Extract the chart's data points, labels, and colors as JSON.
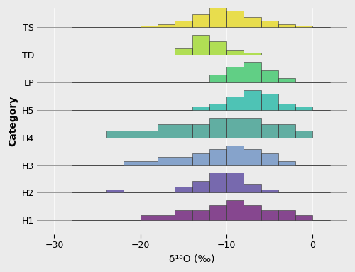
{
  "categories": [
    "H1",
    "H2",
    "H3",
    "H4",
    "H5",
    "LP",
    "TD",
    "TS"
  ],
  "colors": {
    "H1": "#7B3585",
    "H2": "#6B5BA8",
    "H3": "#7B9BC8",
    "H4": "#52A89A",
    "H5": "#3DBFAF",
    "LP": "#52CC7A",
    "TD": "#AADD44",
    "TS": "#E8DC3C"
  },
  "xlim": [
    -32,
    4
  ],
  "xlabel": "δ¹⁸O (‰)",
  "ylabel": "Category",
  "background_color": "#EBEBEB",
  "hist_data": {
    "TS": {
      "edges": [
        -28,
        -26,
        -24,
        -22,
        -20,
        -18,
        -16,
        -14,
        -12,
        -10,
        -8,
        -6,
        -4,
        -2,
        0,
        2
      ],
      "counts": [
        0,
        0,
        0,
        0,
        1,
        2,
        4,
        8,
        12,
        10,
        6,
        4,
        2,
        1,
        0
      ]
    },
    "TD": {
      "edges": [
        -28,
        -26,
        -24,
        -22,
        -20,
        -18,
        -16,
        -14,
        -12,
        -10,
        -8,
        -6,
        -4,
        -2,
        0,
        2
      ],
      "counts": [
        0,
        0,
        0,
        0,
        0,
        0,
        3,
        9,
        6,
        2,
        1,
        0,
        0,
        0,
        0
      ]
    },
    "LP": {
      "edges": [
        -28,
        -26,
        -24,
        -22,
        -20,
        -18,
        -16,
        -14,
        -12,
        -10,
        -8,
        -6,
        -4,
        -2,
        0,
        2
      ],
      "counts": [
        0,
        0,
        0,
        0,
        0,
        0,
        0,
        0,
        2,
        4,
        5,
        3,
        1,
        0,
        0
      ]
    },
    "H5": {
      "edges": [
        -28,
        -26,
        -24,
        -22,
        -20,
        -18,
        -16,
        -14,
        -12,
        -10,
        -8,
        -6,
        -4,
        -2,
        0,
        2
      ],
      "counts": [
        0,
        0,
        0,
        0,
        0,
        0,
        0,
        1,
        2,
        4,
        6,
        5,
        2,
        1,
        0
      ]
    },
    "H4": {
      "edges": [
        -28,
        -26,
        -24,
        -22,
        -20,
        -18,
        -16,
        -14,
        -12,
        -10,
        -8,
        -6,
        -4,
        -2,
        0,
        2
      ],
      "counts": [
        0,
        0,
        1,
        1,
        1,
        2,
        2,
        2,
        3,
        3,
        3,
        2,
        2,
        1,
        0
      ]
    },
    "H3": {
      "edges": [
        -28,
        -26,
        -24,
        -22,
        -20,
        -18,
        -16,
        -14,
        -12,
        -10,
        -8,
        -6,
        -4,
        -2,
        0,
        2
      ],
      "counts": [
        0,
        0,
        0,
        1,
        1,
        2,
        2,
        3,
        4,
        5,
        4,
        3,
        1,
        0,
        0
      ]
    },
    "H2": {
      "edges": [
        -28,
        -26,
        -24,
        -22,
        -20,
        -18,
        -16,
        -14,
        -12,
        -10,
        -8,
        -6,
        -4,
        -2,
        0,
        2
      ],
      "counts": [
        0,
        0,
        1,
        0,
        0,
        0,
        2,
        4,
        7,
        7,
        3,
        1,
        0,
        0,
        0
      ]
    },
    "H1": {
      "edges": [
        -28,
        -26,
        -24,
        -22,
        -20,
        -18,
        -16,
        -14,
        -12,
        -10,
        -8,
        -6,
        -4,
        -2,
        0,
        2
      ],
      "counts": [
        0,
        0,
        0,
        0,
        1,
        1,
        2,
        2,
        3,
        4,
        3,
        2,
        2,
        1,
        0
      ]
    }
  },
  "row_scale": 0.72,
  "title_fontsize": 10,
  "label_fontsize": 10,
  "tick_fontsize": 9
}
